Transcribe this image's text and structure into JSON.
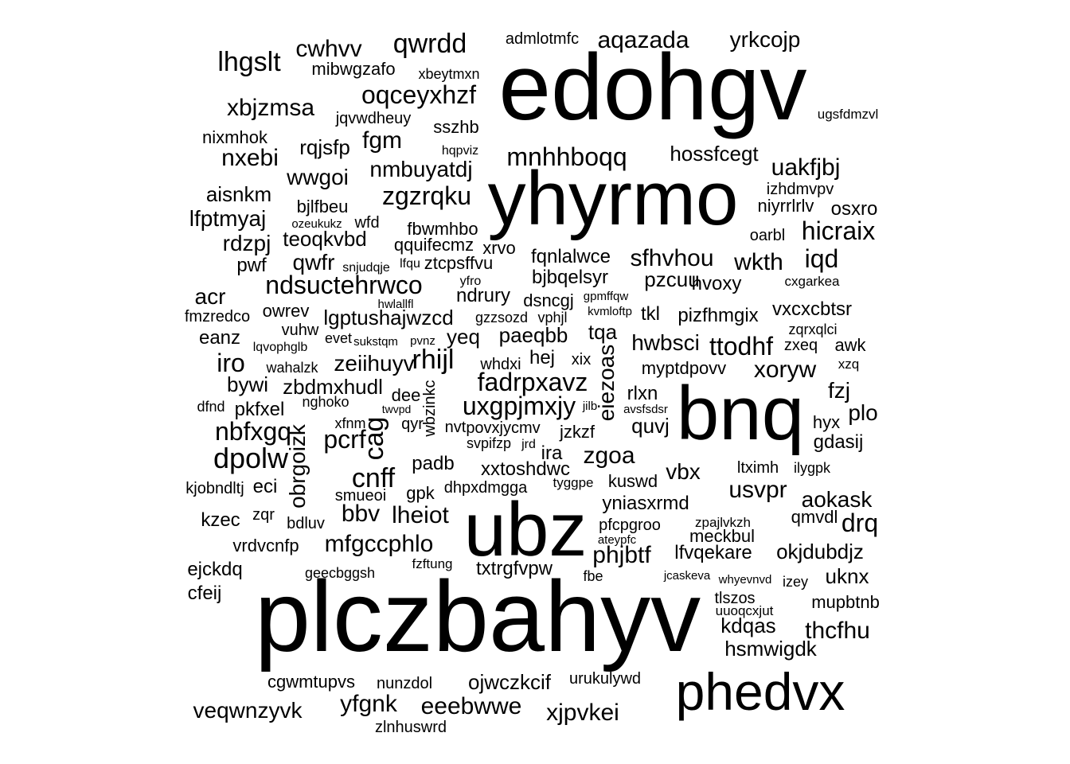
{
  "text_color": "#000000",
  "background": "#ffffff",
  "words": [
    "edohgv",
    "yhyrmo",
    "bnq",
    "ubz",
    "plczbahyv",
    "phedvx",
    "qwrdd",
    "cwhvv",
    "lhgslt",
    "aqazada",
    "yrkcojp",
    "admlotmfc",
    "mibwgzafo",
    "xbeytmxn",
    "xbjzmsa",
    "oqceyxhzf",
    "jqvwdheuy",
    "sszhb",
    "ugsfdmzvl",
    "nixmhok",
    "rqjsfp",
    "fgm",
    "hqpviz",
    "nxebi",
    "mnhhboqq",
    "hossfcegt",
    "uakfjbj",
    "wwgoi",
    "nmbuyatdj",
    "izhdmvpv",
    "aisnkm",
    "zgzrqku",
    "bjlfbeu",
    "niyrrlrlv",
    "osxro",
    "lfptmyaj",
    "ozeukukz",
    "wfd",
    "fbwmhbo",
    "hicraix",
    "oarbl",
    "rdzpj",
    "teoqkvbd",
    "qquifecmz",
    "xrvo",
    "qwfr",
    "snjudqje",
    "lfqu",
    "ztcpsffvu",
    "fqnlalwce",
    "sfhvhou",
    "wkth",
    "iqd",
    "pwf",
    "bjbqelsyr",
    "pzcuu",
    "hvoxy",
    "cxgarkea",
    "ndsuctehrwco",
    "yfro",
    "acr",
    "ndrury",
    "dsncgj",
    "gpmffqw",
    "hwlallfl",
    "owrev",
    "fmzredco",
    "lgptushajwzcd",
    "gzzsozd",
    "vphjl",
    "kvmloftp",
    "tkl",
    "pizfhmgix",
    "vxcxcbtsr",
    "vuhw",
    "zqrxqlci",
    "eanz",
    "evet",
    "sukstqm",
    "pvnz",
    "yeq",
    "paeqbb",
    "tqa",
    "hwbsci",
    "ttodhf",
    "zxeq",
    "awk",
    "lqvophglb",
    "iro",
    "zeiihuyv",
    "rhijl",
    "whdxi",
    "hej",
    "xix",
    "eiezoas",
    "xzq",
    "wahalzk",
    "myptdpovv",
    "xoryw",
    "bywi",
    "fadrpxavz",
    "fzj",
    "zbdmxhudl",
    "dee",
    "rlxn",
    "dfnd",
    "nghoko",
    "wbzinkc",
    "pkfxel",
    "twvpd",
    "uxgpjmxjy",
    "jilb",
    "avsfsdsr",
    "plo",
    "nbfxgq",
    "xfnm",
    "qyr",
    "nvt",
    "povxjycmv",
    "jzkzf",
    "quvj",
    "hyx",
    "cag",
    "obrgoizk",
    "pcrf",
    "svpifzp",
    "jrd",
    "gdasij",
    "dpolw",
    "ira",
    "zgoa",
    "padb",
    "xxtoshdwc",
    "cnff",
    "ltximh",
    "ilygpk",
    "vbx",
    "kjobndltj",
    "eci",
    "tyggpe",
    "kuswd",
    "smueoi",
    "gpk",
    "dhpxdmgga",
    "usvpr",
    "yniasxrmd",
    "aokask",
    "bbv",
    "lheiot",
    "kzec",
    "zqr",
    "qmvdl",
    "drq",
    "bdluv",
    "pfcpgroo",
    "zpajlvkzh",
    "meckbul",
    "ateypfc",
    "mfgccphlo",
    "vrdvcnfp",
    "phjbtf",
    "lfvqekare",
    "okjdubdjz",
    "ejckdq",
    "geecbggsh",
    "fzftung",
    "txtrgfvpw",
    "fbe",
    "jcaskeva",
    "whyevnvd",
    "izey",
    "uknx",
    "cfeij",
    "tlszos",
    "mupbtnb",
    "uuoqcxjut",
    "kdqas",
    "thcfhu",
    "hsmwigdk",
    "cgwmtupvs",
    "nunzdol",
    "ojwczkcif",
    "urukulywd",
    "veqwnzyvk",
    "yfgnk",
    "eeebwwe",
    "xjpvkei",
    "zlnhuswrd"
  ]
}
